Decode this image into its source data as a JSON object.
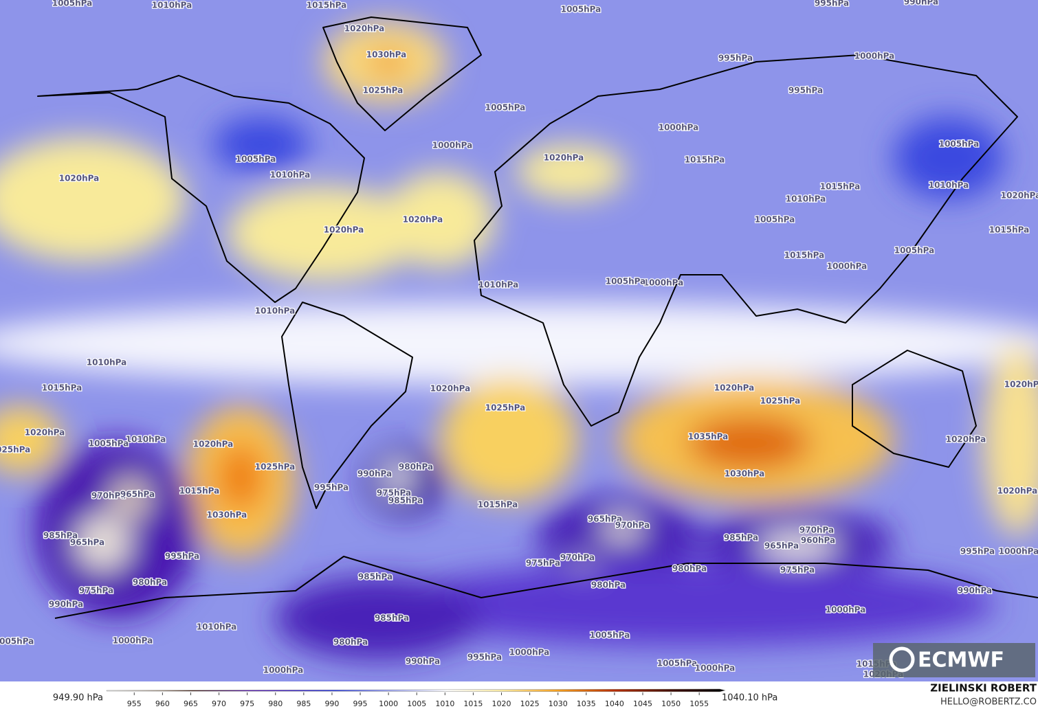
{
  "map": {
    "contour_labels": [
      "1005hPa",
      "1010hPa",
      "1015hPa",
      "1020hPa",
      "1030hPa",
      "1025hPa",
      "1005hPa",
      "995hPa",
      "990hPa",
      "995hPa",
      "1000hPa",
      "995hPa",
      "1005hPa",
      "1000hPa",
      "1000hPa",
      "1005hPa",
      "1010hPa",
      "1020hPa",
      "1020hPa",
      "1015hPa",
      "1015hPa",
      "1010hPa",
      "1005hPa",
      "1005hPa",
      "1010hPa",
      "1020hPa",
      "1015hPa",
      "1005hPa",
      "1015hPa",
      "1000hPa",
      "1020hPa",
      "1020hPa",
      "1010hPa",
      "1000hPa",
      "1005hPa",
      "1010hPa",
      "1010hPa",
      "1015hPa",
      "1020hPa",
      "1020hPa",
      "1025hPa",
      "1025hPa",
      "1035hPa",
      "1030hPa",
      "1020hPa",
      "1020hPa",
      "1020hPa",
      "1020hPa",
      "1025hPa",
      "1010hPa",
      "1005hPa",
      "1020hPa",
      "1025hPa",
      "1015hPa",
      "1030hPa",
      "990hPa",
      "980hPa",
      "975hPa",
      "985hPa",
      "995hPa",
      "1015hPa",
      "970hPa",
      "965hPa",
      "985hPa",
      "965hPa",
      "995hPa",
      "975hPa",
      "980hPa",
      "990hPa",
      "965hPa",
      "970hPa",
      "975hPa",
      "970hPa",
      "985hPa",
      "970hPa",
      "965hPa",
      "960hPa",
      "975hPa",
      "980hPa",
      "980hPa",
      "995hPa",
      "1000hPa",
      "990hPa",
      "985hPa",
      "985hPa",
      "980hPa",
      "1000hPa",
      "1005hPa",
      "1010hPa",
      "1000hPa",
      "1005hPa",
      "990hPa",
      "995hPa",
      "1000hPa",
      "1000hPa",
      "1005hPa",
      "1000hPa",
      "1015hPa",
      "1020hPa"
    ]
  },
  "colorbar": {
    "min_label": "949.90 hPa",
    "max_label": "1040.10 hPa",
    "lim": [
      950.1,
      1059.6
    ],
    "ticks": [
      955,
      960,
      965,
      970,
      975,
      980,
      985,
      990,
      995,
      1000,
      1005,
      1010,
      1015,
      1020,
      1025,
      1030,
      1035,
      1040,
      1045,
      1050,
      1055
    ]
  },
  "credits": {
    "author": "ZIELINSKI ROBERT",
    "email": "HELLO@ROBERTZ.CO",
    "logo": "ECMWF"
  }
}
